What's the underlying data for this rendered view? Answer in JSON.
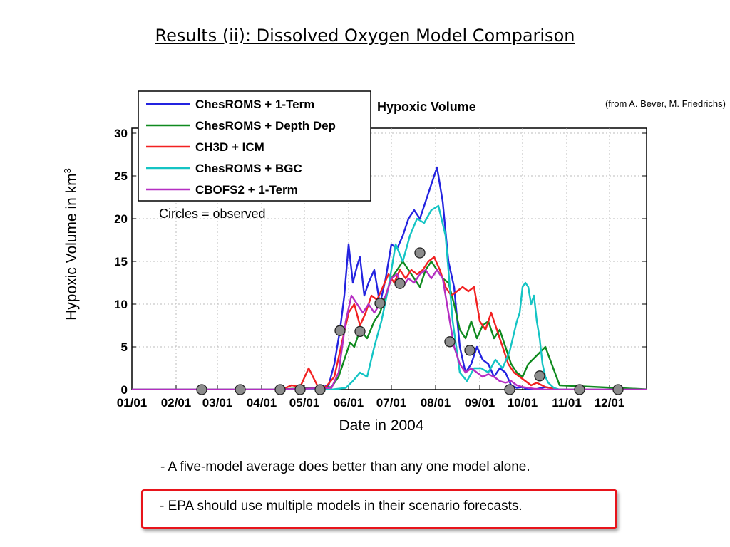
{
  "slide": {
    "title": "Results (ii): Dissolved Oxygen Model Comparison",
    "credit": "(from A. Bever, M. Friedrichs)",
    "note": "Circles = observed",
    "bullet1": "- A five-model average does better than any one model alone.",
    "bullet2": "- EPA should use multiple models in their scenario forecasts.",
    "highlight_color": "#e8141b"
  },
  "chart_data": {
    "type": "line",
    "title": "Hypoxic Volume",
    "xlabel": "Date in 2004",
    "ylabel": "Hypoxic Volume in km",
    "ylabel_sup": "3",
    "xlim": [
      0,
      366
    ],
    "ylim": [
      0,
      30
    ],
    "yticks": [
      0,
      5,
      10,
      15,
      20,
      25,
      30
    ],
    "xticks": [
      {
        "day": 0,
        "label": "01/01"
      },
      {
        "day": 31,
        "label": "02/01"
      },
      {
        "day": 60,
        "label": "03/01"
      },
      {
        "day": 91,
        "label": "04/01"
      },
      {
        "day": 121,
        "label": "05/01"
      },
      {
        "day": 152,
        "label": "06/01"
      },
      {
        "day": 182,
        "label": "07/01"
      },
      {
        "day": 213,
        "label": "08/01"
      },
      {
        "day": 244,
        "label": "09/01"
      },
      {
        "day": 274,
        "label": "10/01"
      },
      {
        "day": 305,
        "label": "11/01"
      },
      {
        "day": 335,
        "label": "12/01"
      }
    ],
    "legend_position": "top-left",
    "series": [
      {
        "name": "ChesROMS + 1-Term",
        "color": "#2323e0",
        "x": [
          0,
          60,
          100,
          130,
          138,
          142,
          146,
          149,
          152,
          155,
          158,
          160,
          163,
          166,
          170,
          174,
          178,
          182,
          186,
          190,
          194,
          198,
          202,
          206,
          210,
          214,
          218,
          222,
          226,
          230,
          234,
          238,
          242,
          246,
          250,
          254,
          258,
          262,
          266,
          270,
          274,
          278,
          282,
          290,
          300,
          330,
          366
        ],
        "y": [
          0,
          0,
          0,
          0.1,
          0.5,
          3,
          7,
          11,
          17,
          12.5,
          14.5,
          15.5,
          11,
          12.5,
          14,
          10,
          13,
          17,
          16.5,
          18,
          20,
          21,
          20,
          22,
          24,
          26,
          22,
          15,
          12,
          5,
          2,
          3,
          5,
          3.5,
          3,
          1.5,
          2.5,
          2,
          0.5,
          0.2,
          0.3,
          0,
          0,
          0.3,
          0,
          0,
          0
        ]
      },
      {
        "name": "ChesROMS + Depth Dep",
        "color": "#0f8a1f",
        "x": [
          0,
          100,
          140,
          145,
          150,
          153,
          156,
          160,
          165,
          170,
          174,
          178,
          182,
          186,
          190,
          194,
          198,
          202,
          206,
          210,
          214,
          218,
          222,
          226,
          230,
          234,
          238,
          242,
          246,
          250,
          254,
          258,
          262,
          266,
          270,
          274,
          278,
          284,
          290,
          300,
          366
        ],
        "y": [
          0,
          0,
          0.3,
          1.5,
          4,
          5.5,
          5,
          7,
          6,
          8,
          9,
          11,
          13,
          14,
          15,
          14,
          13,
          12,
          14,
          15,
          14,
          13,
          12.5,
          10,
          7,
          6,
          8,
          6,
          7.5,
          8,
          6,
          7,
          5,
          3,
          2,
          1.5,
          3,
          4,
          5,
          0.5,
          0
        ]
      },
      {
        "name": "CH3D + ICM",
        "color": "#f22121",
        "x": [
          0,
          105,
          112,
          118,
          124,
          130,
          136,
          142,
          148,
          152,
          156,
          160,
          164,
          168,
          172,
          176,
          180,
          184,
          188,
          192,
          196,
          200,
          204,
          208,
          212,
          216,
          220,
          224,
          228,
          232,
          236,
          240,
          244,
          248,
          252,
          256,
          260,
          264,
          268,
          272,
          276,
          280,
          284,
          290,
          300,
          366
        ],
        "y": [
          0,
          0,
          0.5,
          0.3,
          2.5,
          0.5,
          0.3,
          1.5,
          6,
          9,
          10,
          7.5,
          9,
          11,
          10.5,
          12,
          13.5,
          12.5,
          14,
          13,
          14,
          13.5,
          14,
          15,
          15.5,
          14,
          12,
          11,
          11.5,
          12,
          11.5,
          12,
          8,
          7,
          9,
          7,
          5,
          3,
          2,
          1.5,
          1,
          0.5,
          0.8,
          0.3,
          0,
          0
        ]
      },
      {
        "name": "ChesROMS + BGC",
        "color": "#14c4c4",
        "x": [
          0,
          140,
          150,
          155,
          160,
          165,
          170,
          175,
          180,
          185,
          190,
          195,
          200,
          205,
          210,
          215,
          220,
          225,
          230,
          235,
          240,
          245,
          250,
          255,
          260,
          265,
          270,
          272,
          274,
          276,
          278,
          280,
          282,
          284,
          286,
          288,
          290,
          292,
          296,
          300,
          366
        ],
        "y": [
          0,
          0,
          0.2,
          1,
          2,
          1.5,
          5,
          8,
          12,
          17,
          15,
          18,
          20,
          19.5,
          21,
          21.5,
          18,
          8,
          2,
          1,
          2.5,
          2.5,
          2,
          3.5,
          2.5,
          4.5,
          8,
          9,
          12,
          12.5,
          12,
          10,
          11,
          8,
          6,
          3,
          1.5,
          0.8,
          0.2,
          0,
          0
        ]
      },
      {
        "name": "CBOFS2 + 1-Term",
        "color": "#b52ec2",
        "x": [
          0,
          100,
          140,
          145,
          150,
          154,
          158,
          162,
          166,
          170,
          174,
          178,
          182,
          186,
          190,
          194,
          198,
          202,
          206,
          210,
          214,
          218,
          222,
          226,
          230,
          234,
          238,
          242,
          246,
          250,
          254,
          258,
          262,
          266,
          270,
          274,
          278,
          282,
          290,
          300,
          366
        ],
        "y": [
          0,
          0,
          0.2,
          2,
          8,
          11,
          10,
          9,
          10,
          9,
          10,
          11,
          13,
          13.5,
          12,
          13,
          12.5,
          13.5,
          14,
          13,
          14,
          13,
          9,
          5,
          3,
          2,
          2.5,
          2,
          1.5,
          1.8,
          1.5,
          1,
          0.8,
          1,
          0.5,
          0.3,
          0.2,
          0.1,
          0,
          0,
          0
        ]
      }
    ],
    "observed": [
      {
        "x": 49,
        "y": 0
      },
      {
        "x": 76,
        "y": 0
      },
      {
        "x": 104,
        "y": 0
      },
      {
        "x": 118,
        "y": 0
      },
      {
        "x": 132,
        "y": 0
      },
      {
        "x": 146,
        "y": 6.9
      },
      {
        "x": 160,
        "y": 6.8
      },
      {
        "x": 174,
        "y": 10.1
      },
      {
        "x": 188,
        "y": 12.4
      },
      {
        "x": 202,
        "y": 16
      },
      {
        "x": 223,
        "y": 5.6
      },
      {
        "x": 237,
        "y": 4.6
      },
      {
        "x": 265,
        "y": 0
      },
      {
        "x": 286,
        "y": 1.6
      },
      {
        "x": 314,
        "y": 0
      },
      {
        "x": 341,
        "y": 0
      }
    ]
  }
}
